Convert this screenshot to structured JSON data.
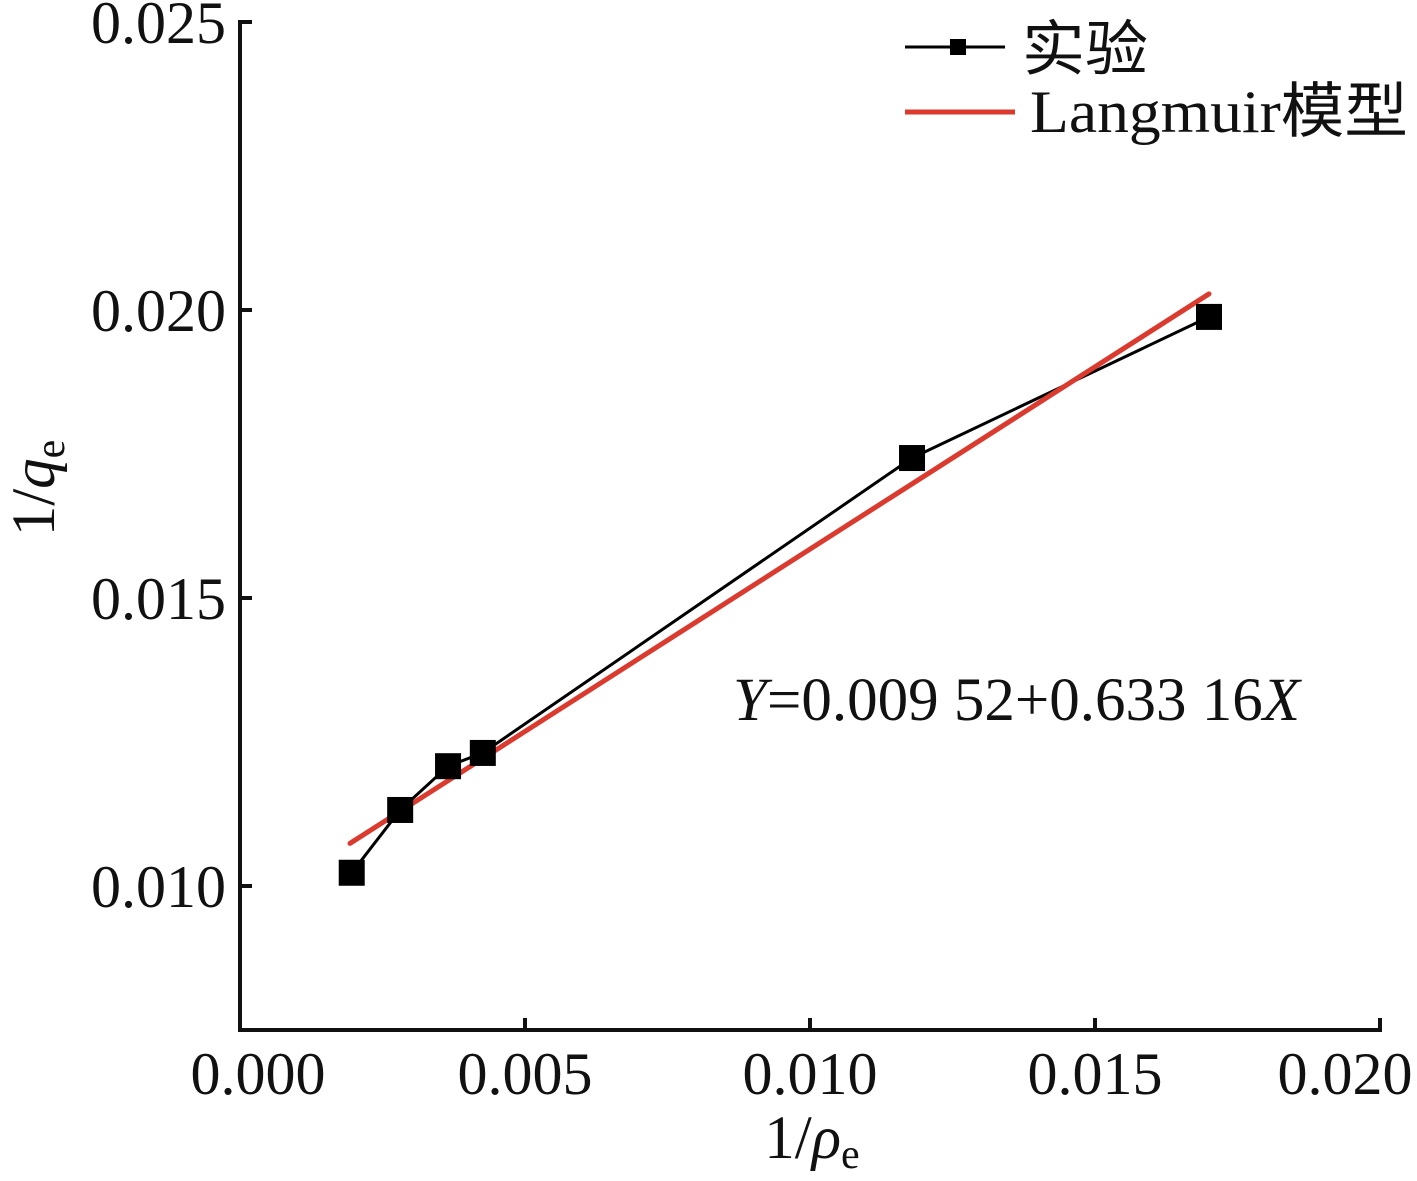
{
  "chart_data": {
    "type": "line",
    "xlabel": {
      "prefix": "1/",
      "symbol": "ρ",
      "subscript": "e"
    },
    "ylabel": {
      "prefix": "1/",
      "symbol": "q",
      "subscript": "e"
    },
    "xlim": [
      0,
      0.02
    ],
    "ylim": [
      0.0075,
      0.025
    ],
    "xticks": [
      {
        "value": 0,
        "label": "0.000"
      },
      {
        "value": 0.005,
        "label": "0.005"
      },
      {
        "value": 0.01,
        "label": "0.010"
      },
      {
        "value": 0.015,
        "label": "0.015"
      },
      {
        "value": 0.02,
        "label": "0.020"
      }
    ],
    "yticks": [
      {
        "value": 0.01,
        "label": "0.010"
      },
      {
        "value": 0.015,
        "label": "0.015"
      },
      {
        "value": 0.02,
        "label": "0.020"
      },
      {
        "value": 0.025,
        "label": "0.025"
      }
    ],
    "grid": false,
    "legend": {
      "position": "top-right"
    },
    "series": [
      {
        "name": "实验",
        "color": "#000000",
        "marker": "square",
        "x": [
          0.00196,
          0.00281,
          0.00365,
          0.00426,
          0.01179,
          0.017
        ],
        "y": [
          0.01023,
          0.01132,
          0.01208,
          0.01231,
          0.01743,
          0.01988
        ]
      },
      {
        "name": "Langmuir模型",
        "color": "#db3a2f",
        "marker": "none",
        "x": [
          0.00193,
          0.017
        ],
        "y": [
          0.01074,
          0.02028
        ]
      }
    ],
    "annotation": {
      "y_symbol": "Y",
      "body": "=0.009 52+0.633 16",
      "x_symbol": "X"
    }
  }
}
